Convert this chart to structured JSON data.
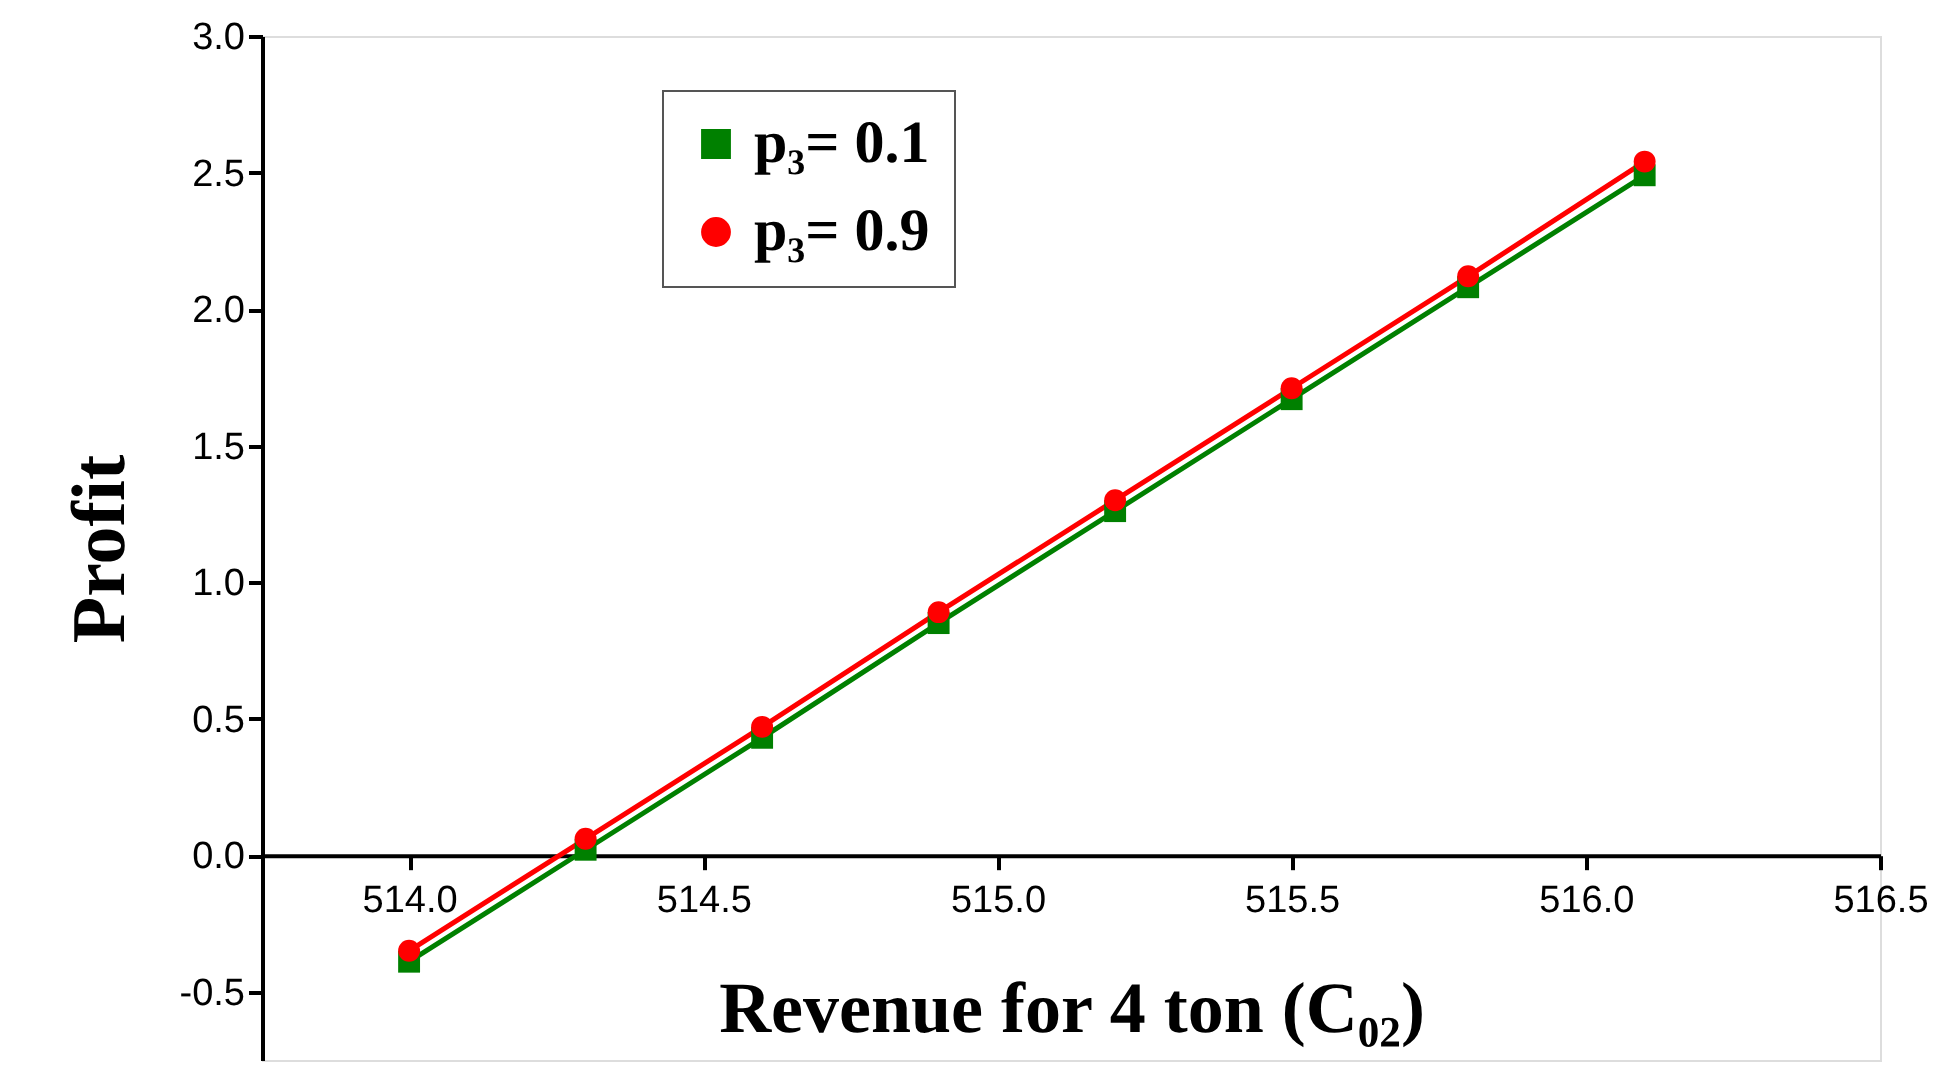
{
  "chart_data": {
    "type": "line",
    "xlabel": "Revenue for 4 ton (C₀₂)",
    "ylabel": "Profit",
    "x": [
      514.0,
      514.3,
      514.6,
      514.9,
      515.2,
      515.5,
      515.8,
      516.1
    ],
    "series": [
      {
        "name": "p₃= 0.1",
        "color": "#008000",
        "marker": "square",
        "values": [
          -0.39,
          0.02,
          0.43,
          0.85,
          1.26,
          1.67,
          2.08,
          2.49
        ]
      },
      {
        "name": "p₃= 0.9",
        "color": "#ff0000",
        "marker": "circle",
        "values": [
          -0.35,
          0.06,
          0.47,
          0.89,
          1.3,
          1.71,
          2.12,
          2.54
        ]
      }
    ],
    "xlim": [
      513.75,
      516.5
    ],
    "xticks": [
      {
        "value": 514,
        "label": "514.0"
      },
      {
        "value": 514.5,
        "label": "514.5"
      },
      {
        "value": 515,
        "label": "515.0"
      },
      {
        "value": 515.5,
        "label": "515.5"
      },
      {
        "value": 516,
        "label": "516.0"
      },
      {
        "value": 516.5,
        "label": "516.5"
      }
    ],
    "ylim": [
      -0.75,
      3.0
    ],
    "yticks": [
      {
        "value": -0.5,
        "label": "-0.5"
      },
      {
        "value": 0,
        "label": "0.0"
      },
      {
        "value": 0.5,
        "label": "0.5"
      },
      {
        "value": 1,
        "label": "1.0"
      },
      {
        "value": 1.5,
        "label": "1.5"
      },
      {
        "value": 2,
        "label": "2.0"
      },
      {
        "value": 2.5,
        "label": "2.5"
      },
      {
        "value": 3,
        "label": "3.0"
      }
    ],
    "grid": false,
    "legend": "top left",
    "line_style": "solid"
  }
}
